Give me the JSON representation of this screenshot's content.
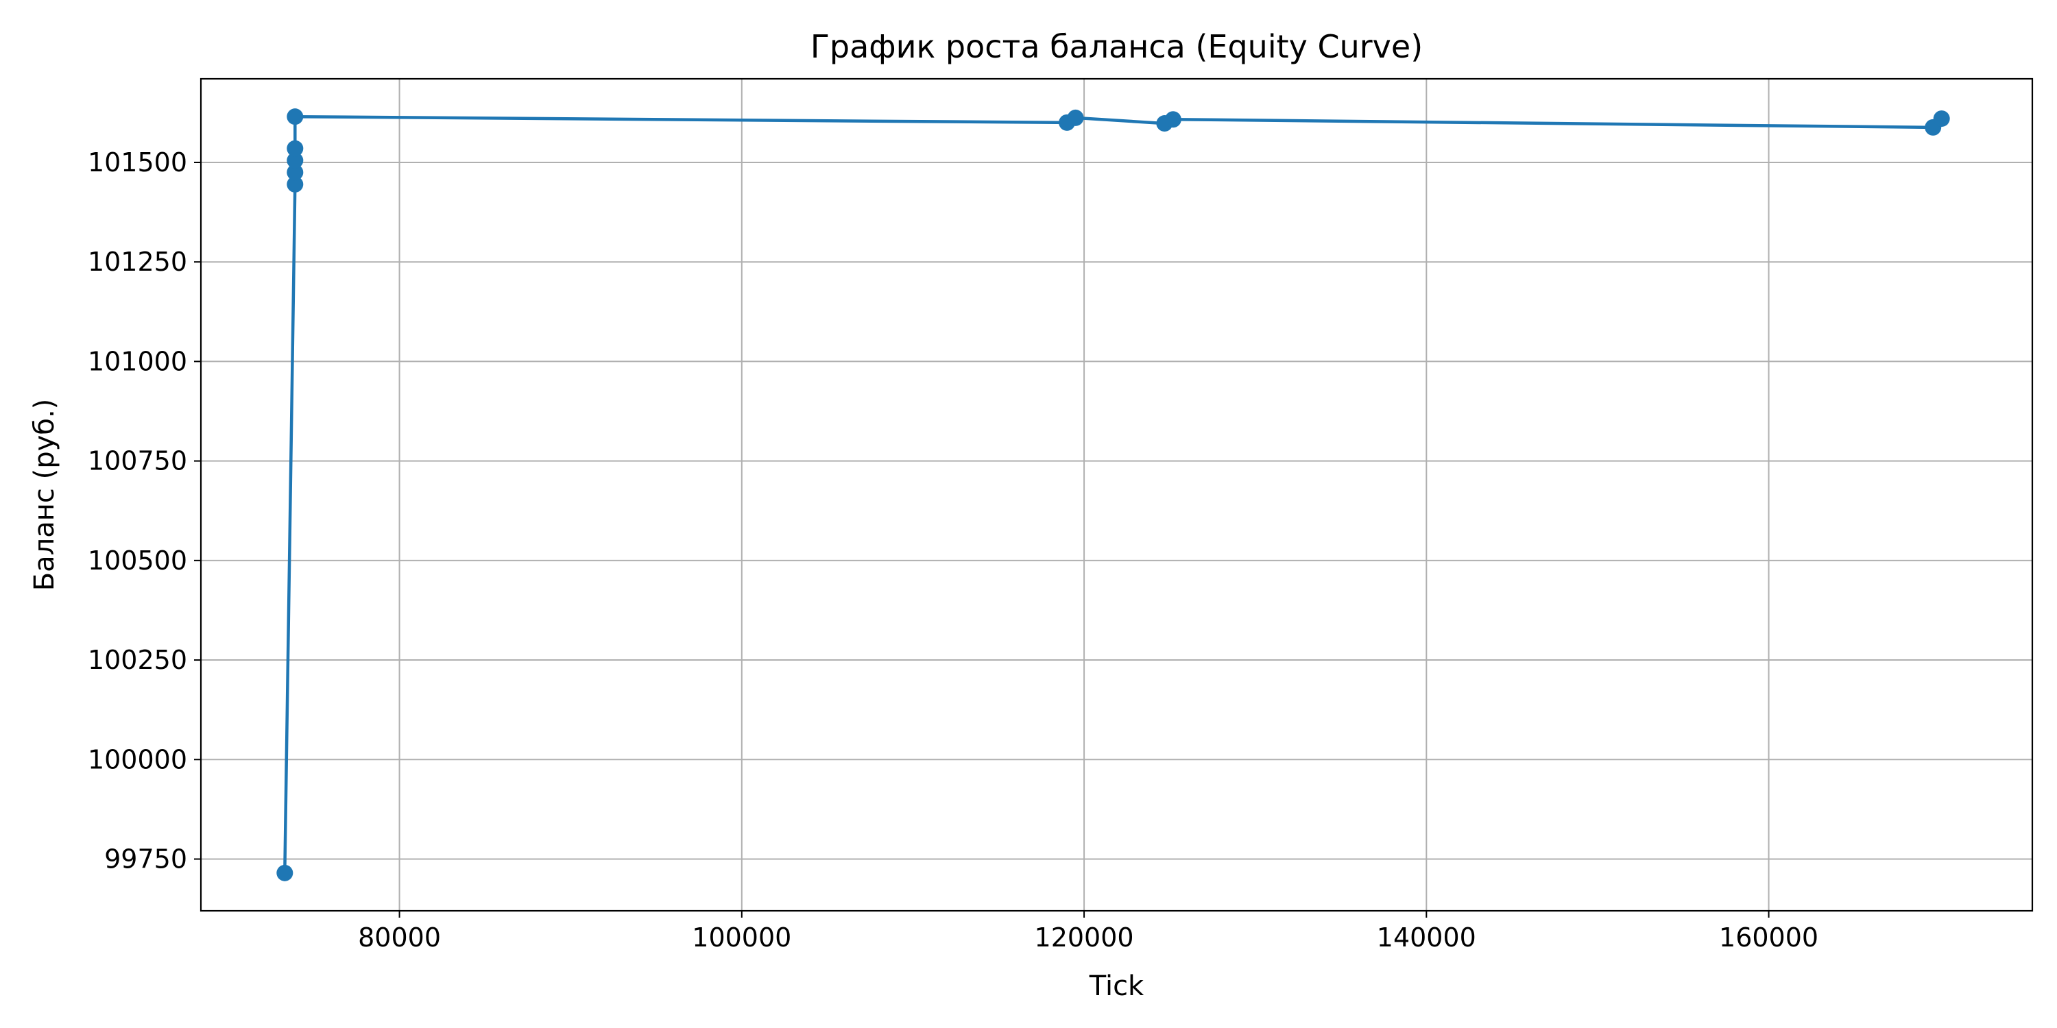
{
  "chart_data": {
    "type": "line",
    "title": "График роста баланса (Equity Curve)",
    "xlabel": "Tick",
    "ylabel": "Баланс (руб.)",
    "xlim": [
      68400,
      175400
    ],
    "ylim": [
      99620,
      101710
    ],
    "xticks": [
      80000,
      100000,
      120000,
      140000,
      160000
    ],
    "yticks": [
      99750,
      100000,
      100250,
      100500,
      100750,
      101000,
      101250,
      101500
    ],
    "grid": true,
    "legend": "none",
    "markers": true,
    "series": [
      {
        "color": "#1f77b4",
        "points": [
          [
            73300,
            99715
          ],
          [
            73900,
            101445
          ],
          [
            73900,
            101475
          ],
          [
            73900,
            101505
          ],
          [
            73900,
            101535
          ],
          [
            73900,
            101615
          ],
          [
            119000,
            101600
          ],
          [
            119500,
            101612
          ],
          [
            124700,
            101598
          ],
          [
            125200,
            101608
          ],
          [
            169600,
            101588
          ],
          [
            170100,
            101610
          ]
        ]
      }
    ]
  }
}
